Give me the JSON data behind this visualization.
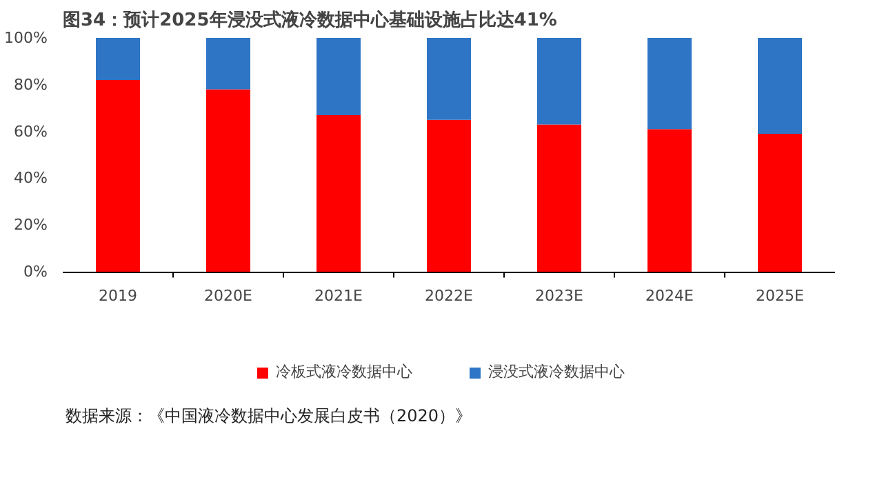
{
  "chart_data": {
    "type": "bar",
    "stacked": true,
    "title": "图34：预计2025年浸没式液冷数据中心基础设施占比达41%",
    "categories": [
      "2019",
      "2020E",
      "2021E",
      "2022E",
      "2023E",
      "2024E",
      "2025E"
    ],
    "series": [
      {
        "name": "冷板式液冷数据中心",
        "color": "#ff0000",
        "values": [
          82,
          78,
          67,
          65,
          63,
          61,
          59
        ]
      },
      {
        "name": "浸没式液冷数据中心",
        "color": "#2e75c6",
        "values": [
          18,
          22,
          33,
          35,
          37,
          39,
          41
        ]
      }
    ],
    "ylim": [
      0,
      100
    ],
    "yticks": [
      {
        "value": 0,
        "label": "0%"
      },
      {
        "value": 20,
        "label": "20%"
      },
      {
        "value": 40,
        "label": "40%"
      },
      {
        "value": 60,
        "label": "60%"
      },
      {
        "value": 80,
        "label": "80%"
      },
      {
        "value": 100,
        "label": "100%"
      }
    ],
    "grid": false,
    "legend": "bottom",
    "annotations": [
      "数据来源：《中国液冷数据中心发展白皮书（2020）》"
    ]
  }
}
